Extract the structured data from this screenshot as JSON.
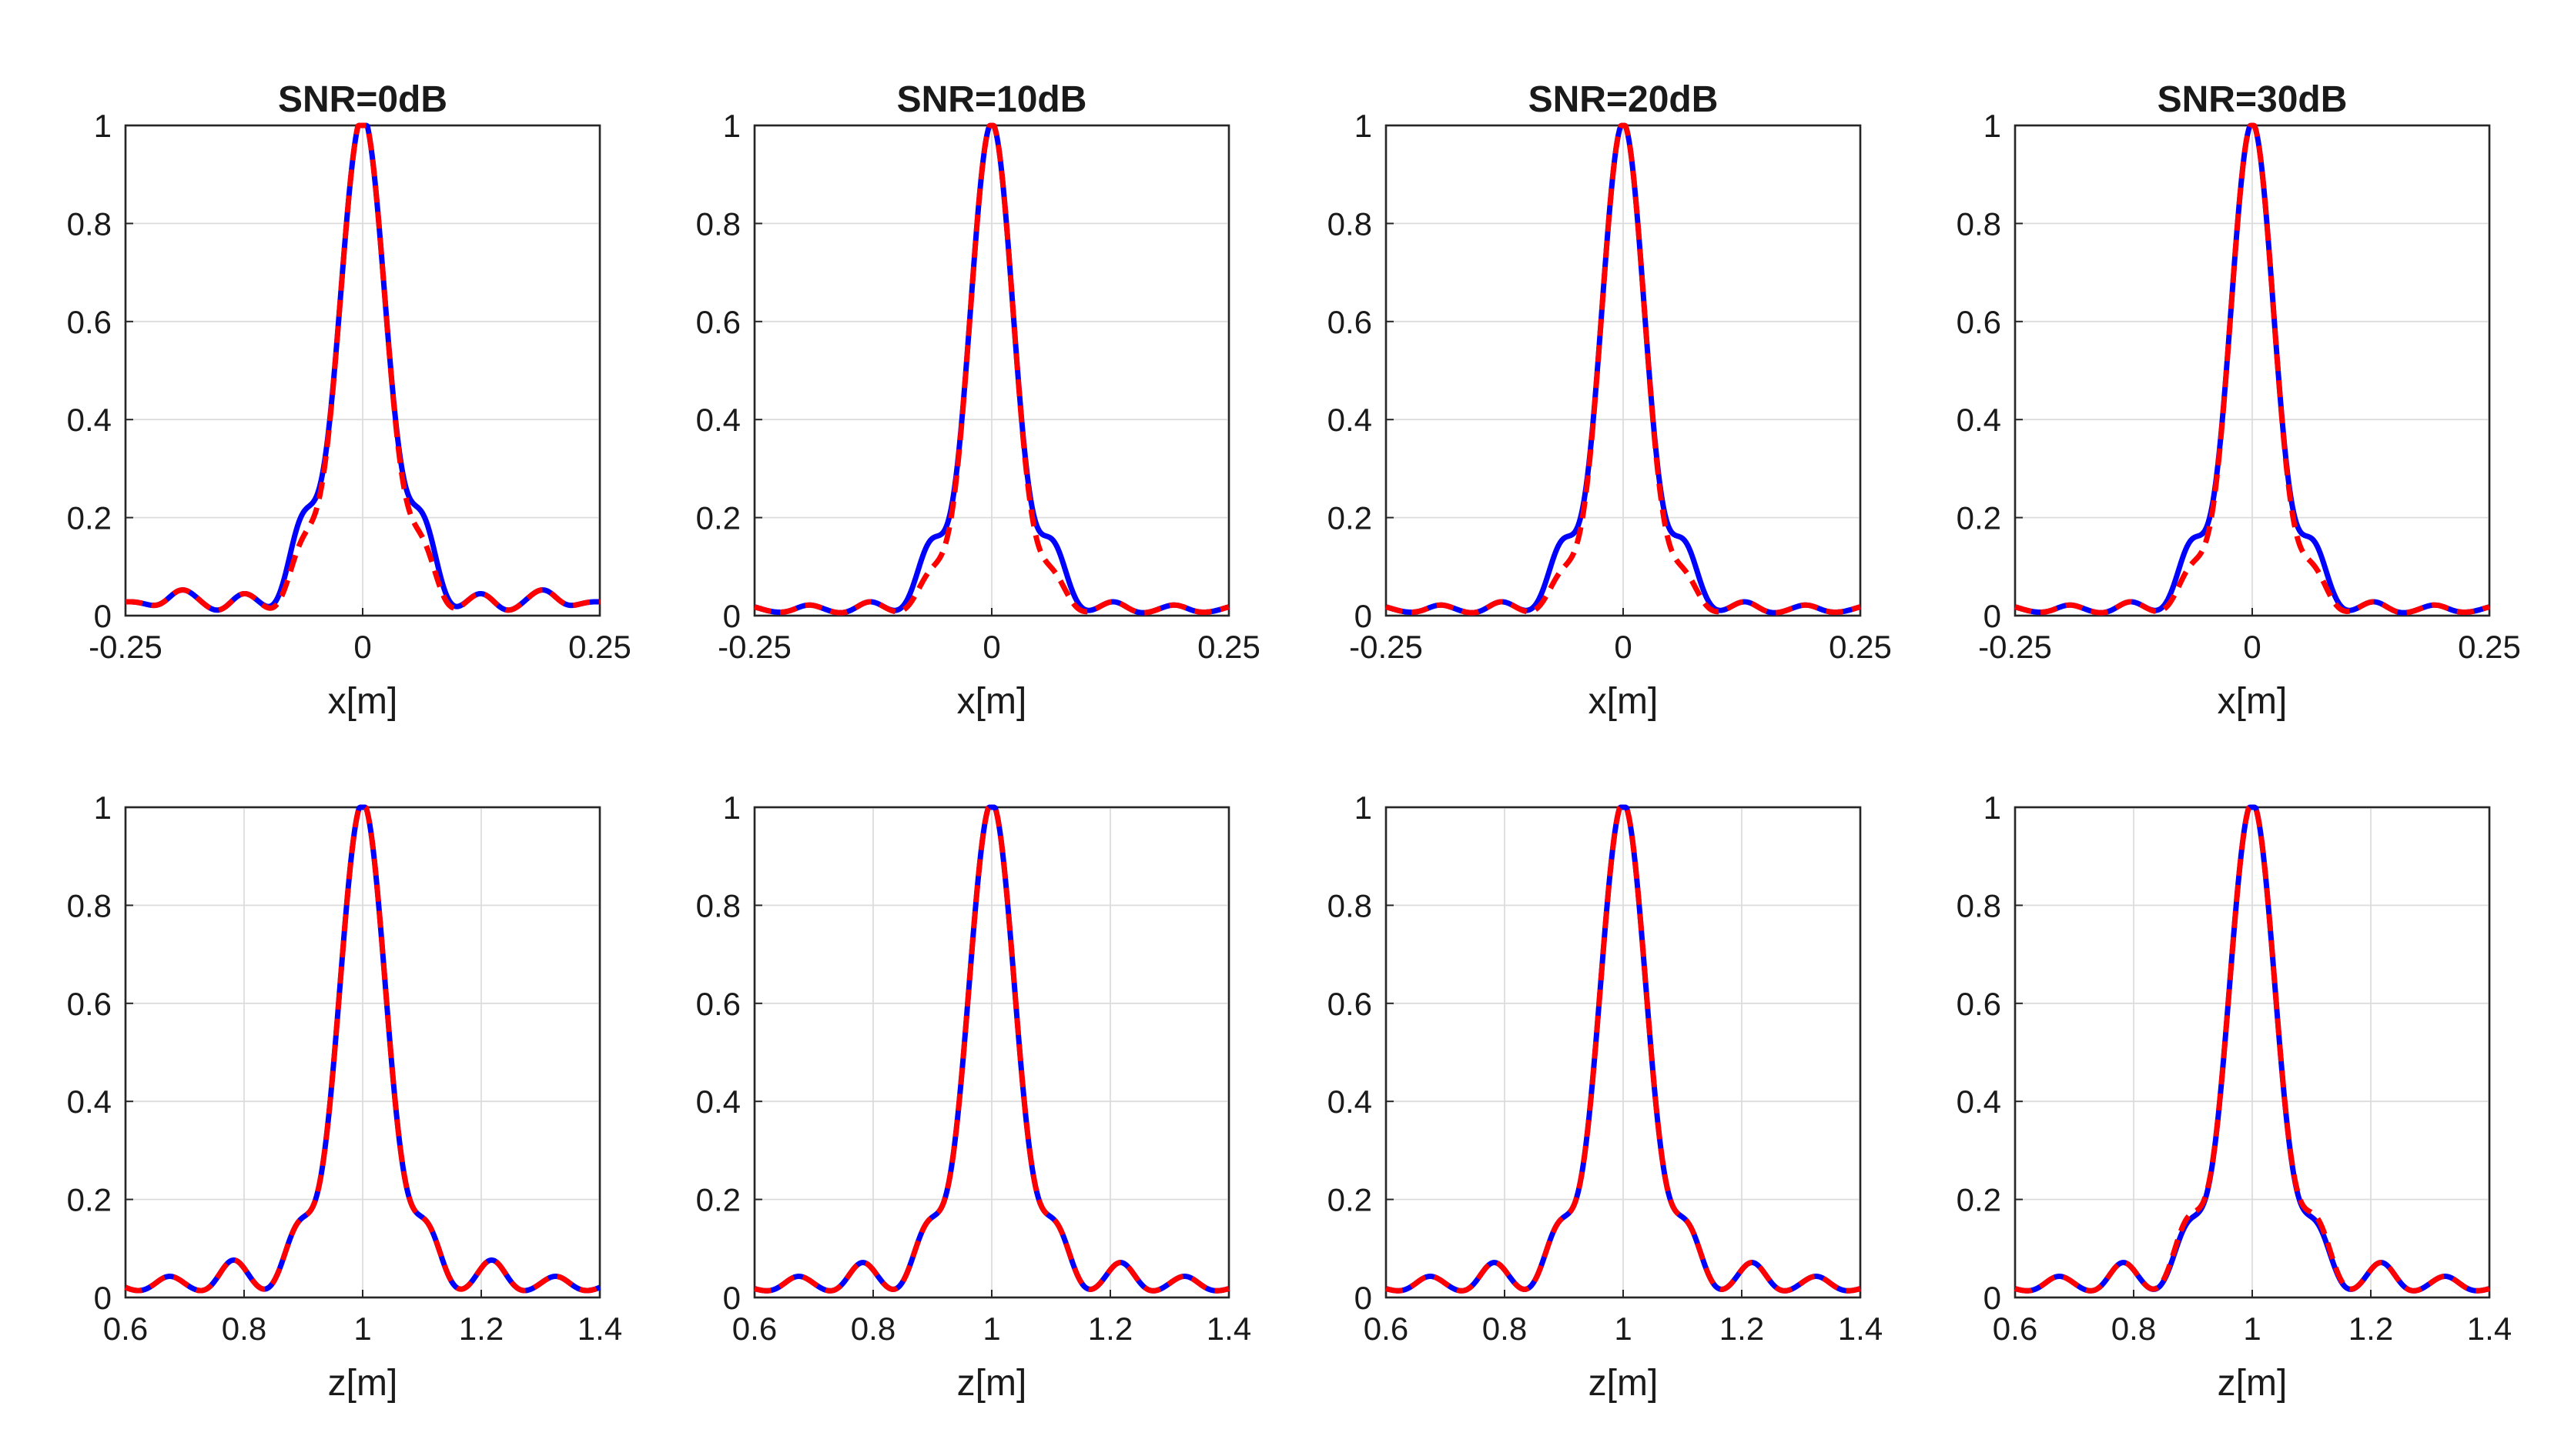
{
  "colors": {
    "measured": "#0000ff",
    "reference": "#ff0000"
  },
  "chart_data": [
    {
      "type": "line",
      "title": "SNR=0dB",
      "xlabel": "x[m]",
      "ylabel": "",
      "xlim": [
        -0.25,
        0.25
      ],
      "ylim": [
        0,
        1
      ],
      "xticks": [
        "-0.25",
        "0",
        "0.25"
      ],
      "yticks": [
        "0",
        "0.2",
        "0.4",
        "0.6",
        "0.8",
        "1"
      ],
      "main_width": 0.025,
      "sidelobe_spacing": 0.065,
      "series": [
        {
          "name": "blue",
          "style": "solid",
          "lobes": [
            0.15,
            0.03,
            0.045,
            0.025
          ],
          "floor": 0.02
        },
        {
          "name": "red",
          "style": "dashed",
          "lobes": [
            0.1,
            0.03,
            0.045,
            0.025
          ],
          "floor": 0.02
        }
      ]
    },
    {
      "type": "line",
      "title": "SNR=10dB",
      "xlabel": "x[m]",
      "ylabel": "",
      "xlim": [
        -0.25,
        0.25
      ],
      "ylim": [
        0,
        1
      ],
      "xticks": [
        "-0.25",
        "0",
        "0.25"
      ],
      "yticks": [
        "0",
        "0.2",
        "0.4",
        "0.6",
        "0.8",
        "1"
      ],
      "main_width": 0.023,
      "sidelobe_spacing": 0.065,
      "series": [
        {
          "name": "blue",
          "style": "solid",
          "lobes": [
            0.13,
            0.025,
            0.02,
            0.02
          ],
          "floor": 0.005
        },
        {
          "name": "red",
          "style": "dashed",
          "lobes": [
            0.07,
            0.025,
            0.02,
            0.02
          ],
          "floor": 0.005
        }
      ]
    },
    {
      "type": "line",
      "title": "SNR=20dB",
      "xlabel": "x[m]",
      "ylabel": "",
      "xlim": [
        -0.25,
        0.25
      ],
      "ylim": [
        0,
        1
      ],
      "xticks": [
        "-0.25",
        "0",
        "0.25"
      ],
      "yticks": [
        "0",
        "0.2",
        "0.4",
        "0.6",
        "0.8",
        "1"
      ],
      "main_width": 0.023,
      "sidelobe_spacing": 0.065,
      "series": [
        {
          "name": "blue",
          "style": "solid",
          "lobes": [
            0.13,
            0.025,
            0.02,
            0.02
          ],
          "floor": 0.005
        },
        {
          "name": "red",
          "style": "dashed",
          "lobes": [
            0.07,
            0.025,
            0.02,
            0.02
          ],
          "floor": 0.005
        }
      ]
    },
    {
      "type": "line",
      "title": "SNR=30dB",
      "xlabel": "x[m]",
      "ylabel": "",
      "xlim": [
        -0.25,
        0.25
      ],
      "ylim": [
        0,
        1
      ],
      "xticks": [
        "-0.25",
        "0",
        "0.25"
      ],
      "yticks": [
        "0",
        "0.2",
        "0.4",
        "0.6",
        "0.8",
        "1"
      ],
      "main_width": 0.023,
      "sidelobe_spacing": 0.065,
      "series": [
        {
          "name": "blue",
          "style": "solid",
          "lobes": [
            0.13,
            0.025,
            0.02,
            0.02
          ],
          "floor": 0.005
        },
        {
          "name": "red",
          "style": "dashed",
          "lobes": [
            0.08,
            0.025,
            0.02,
            0.02
          ],
          "floor": 0.005
        }
      ]
    },
    {
      "type": "line",
      "title": "",
      "xlabel": "z[m]",
      "ylabel": "",
      "xlim": [
        0.6,
        1.4
      ],
      "ylim": [
        0,
        1
      ],
      "xticks": [
        "0.6",
        "0.8",
        "1",
        "1.2",
        "1.4"
      ],
      "yticks": [
        "0",
        "0.2",
        "0.4",
        "0.6",
        "0.8",
        "1"
      ],
      "main_width": 0.04,
      "sidelobe_spacing": 0.11,
      "series": [
        {
          "name": "blue",
          "style": "solid",
          "lobes": [
            0.12,
            0.07,
            0.04,
            0.04
          ],
          "floor": 0.01
        },
        {
          "name": "red",
          "style": "dashed",
          "lobes": [
            0.12,
            0.07,
            0.04,
            0.04
          ],
          "floor": 0.01
        }
      ]
    },
    {
      "type": "line",
      "title": "",
      "xlabel": "z[m]",
      "ylabel": "",
      "xlim": [
        0.6,
        1.4
      ],
      "ylim": [
        0,
        1
      ],
      "xticks": [
        "0.6",
        "0.8",
        "1",
        "1.2",
        "1.4"
      ],
      "yticks": [
        "0",
        "0.2",
        "0.4",
        "0.6",
        "0.8",
        "1"
      ],
      "main_width": 0.04,
      "sidelobe_spacing": 0.11,
      "series": [
        {
          "name": "blue",
          "style": "solid",
          "lobes": [
            0.12,
            0.065,
            0.04,
            0.03
          ],
          "floor": 0.01
        },
        {
          "name": "red",
          "style": "dashed",
          "lobes": [
            0.12,
            0.065,
            0.04,
            0.03
          ],
          "floor": 0.01
        }
      ]
    },
    {
      "type": "line",
      "title": "",
      "xlabel": "z[m]",
      "ylabel": "",
      "xlim": [
        0.6,
        1.4
      ],
      "ylim": [
        0,
        1
      ],
      "xticks": [
        "0.6",
        "0.8",
        "1",
        "1.2",
        "1.4"
      ],
      "yticks": [
        "0",
        "0.2",
        "0.4",
        "0.6",
        "0.8",
        "1"
      ],
      "main_width": 0.04,
      "sidelobe_spacing": 0.11,
      "series": [
        {
          "name": "blue",
          "style": "solid",
          "lobes": [
            0.12,
            0.065,
            0.04,
            0.03
          ],
          "floor": 0.01
        },
        {
          "name": "red",
          "style": "dashed",
          "lobes": [
            0.12,
            0.065,
            0.04,
            0.03
          ],
          "floor": 0.01
        }
      ]
    },
    {
      "type": "line",
      "title": "",
      "xlabel": "z[m]",
      "ylabel": "",
      "xlim": [
        0.6,
        1.4
      ],
      "ylim": [
        0,
        1
      ],
      "xticks": [
        "0.6",
        "0.8",
        "1",
        "1.2",
        "1.4"
      ],
      "yticks": [
        "0",
        "0.2",
        "0.4",
        "0.6",
        "0.8",
        "1"
      ],
      "main_width": 0.04,
      "sidelobe_spacing": 0.11,
      "series": [
        {
          "name": "blue",
          "style": "solid",
          "lobes": [
            0.12,
            0.065,
            0.04,
            0.03
          ],
          "floor": 0.01
        },
        {
          "name": "red",
          "style": "dashed",
          "lobes": [
            0.13,
            0.065,
            0.04,
            0.03
          ],
          "floor": 0.01
        }
      ]
    }
  ]
}
